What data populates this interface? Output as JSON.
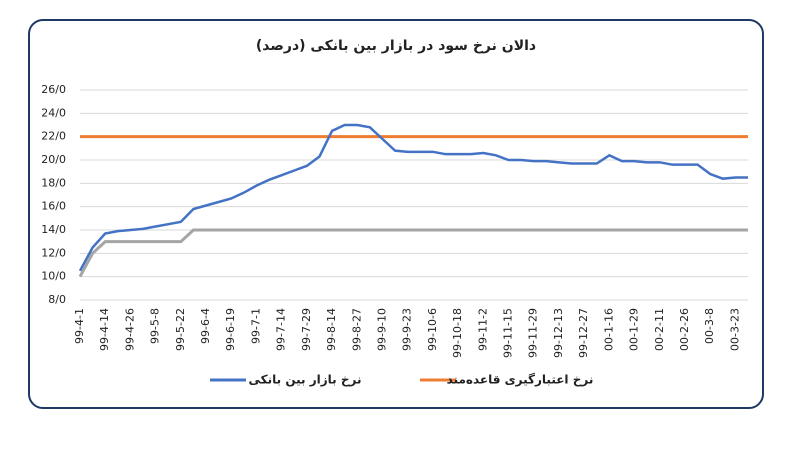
{
  "chart_data": {
    "type": "line",
    "title": "دالان نرخ سود در بازار بین بانکی (درصد)",
    "categories": [
      "99-4-1",
      null,
      "99-4-14",
      null,
      "99-4-26",
      null,
      "99-5-8",
      null,
      "99-5-22",
      null,
      "99-6-4",
      null,
      "99-6-19",
      null,
      "99-7-1",
      null,
      "99-7-14",
      null,
      "99-7-29",
      null,
      "99-8-14",
      null,
      "99-8-27",
      null,
      "99-9-10",
      null,
      "99-9-23",
      null,
      "99-10-6",
      null,
      "99-10-18",
      null,
      "99-11-2",
      null,
      "99-11-15",
      null,
      "99-11-29",
      null,
      "99-12-13",
      null,
      "99-12-27",
      null,
      "00-1-16",
      null,
      "00-1-29",
      null,
      "00-2-11",
      null,
      "00-2-26",
      null,
      "00-3-8",
      null,
      "00-3-23",
      null
    ],
    "series": [
      {
        "name": "نرخ بازار بین بانکی",
        "color": "#4472c4",
        "values": [
          10.5,
          12.5,
          13.7,
          13.9,
          14.0,
          14.1,
          14.3,
          14.5,
          14.7,
          15.8,
          16.1,
          16.4,
          16.7,
          17.2,
          17.8,
          18.3,
          18.7,
          19.1,
          19.5,
          20.3,
          22.5,
          23.0,
          23.0,
          22.8,
          21.8,
          20.8,
          20.7,
          20.7,
          20.7,
          20.5,
          20.5,
          20.5,
          20.6,
          20.4,
          20.0,
          20.0,
          19.9,
          19.9,
          19.8,
          19.7,
          19.7,
          19.7,
          20.4,
          19.9,
          19.9,
          19.8,
          19.8,
          19.6,
          19.6,
          19.6,
          18.8,
          18.4,
          18.5,
          18.5
        ]
      },
      {
        "name": "نرخ اعتبارگیری قاعده‌مند",
        "color": "#ed7d31",
        "values": [
          22,
          22,
          22,
          22,
          22,
          22,
          22,
          22,
          22,
          22,
          22,
          22,
          22,
          22,
          22,
          22,
          22,
          22,
          22,
          22,
          22,
          22,
          22,
          22,
          22,
          22,
          22,
          22,
          22,
          22,
          22,
          22,
          22,
          22,
          22,
          22,
          22,
          22,
          22,
          22,
          22,
          22,
          22,
          22,
          22,
          22,
          22,
          22,
          22,
          22,
          22,
          22,
          22,
          22
        ]
      },
      {
        "color": "#a5a5a5",
        "values": [
          10,
          12,
          13,
          13,
          13,
          13,
          13,
          13,
          13,
          14,
          14,
          14,
          14,
          14,
          14,
          14,
          14,
          14,
          14,
          14,
          14,
          14,
          14,
          14,
          14,
          14,
          14,
          14,
          14,
          14,
          14,
          14,
          14,
          14,
          14,
          14,
          14,
          14,
          14,
          14,
          14,
          14,
          14,
          14,
          14,
          14,
          14,
          14,
          14,
          14,
          14,
          14,
          14,
          14
        ]
      }
    ],
    "ylim": [
      8,
      26
    ],
    "yticks": [
      {
        "value": 8,
        "label": "8/0"
      },
      {
        "value": 10,
        "label": "10/0"
      },
      {
        "value": 12,
        "label": "12/0"
      },
      {
        "value": 14,
        "label": "14/0"
      },
      {
        "value": 16,
        "label": "16/0"
      },
      {
        "value": 18,
        "label": "18/0"
      },
      {
        "value": 20,
        "label": "20/0"
      },
      {
        "value": 22,
        "label": "22/0"
      },
      {
        "value": 24,
        "label": "24/0"
      },
      {
        "value": 26,
        "label": "26/0"
      }
    ],
    "grid": true
  }
}
